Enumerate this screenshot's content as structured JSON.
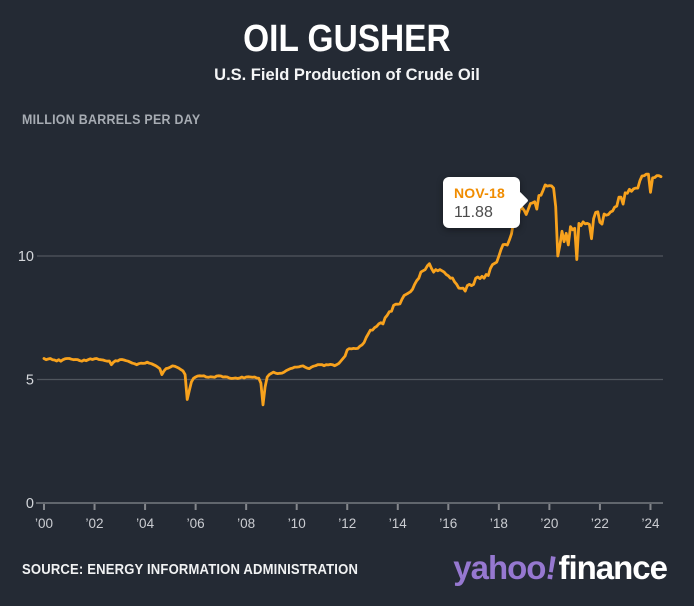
{
  "header": {
    "title": "OIL GUSHER",
    "subtitle": "U.S. Field Production of Crude Oil"
  },
  "units_label": "MILLION BARRELS PER DAY",
  "tooltip": {
    "label": "NOV-18",
    "value": "11.88"
  },
  "footer": {
    "source": "SOURCE: ENERGY INFORMATION ADMINISTRATION",
    "logo_yahoo": "yahoo",
    "logo_bang": "!",
    "logo_finance": "finance"
  },
  "colors": {
    "background": "#242a34",
    "line": "#f8a21d",
    "grid": "#50565e",
    "axis": "#61666d",
    "tick": "#84878c",
    "tick_label": "#caccd1",
    "y_label": "#d4d7db",
    "tooltip_label": "#f08c00",
    "tooltip_value": "#4c4c4c",
    "yahoo_purple": "#9678d0"
  },
  "chart_data": {
    "type": "line",
    "title": "OIL GUSHER",
    "subtitle": "U.S. Field Production of Crude Oil",
    "ylabel": "MILLION BARRELS PER DAY",
    "series_name": "U.S. field production of crude oil",
    "frequency": "monthly",
    "x_start": "2000-01",
    "x_end": "2024-06",
    "x_ticks": [
      2000,
      2002,
      2004,
      2006,
      2008,
      2010,
      2012,
      2014,
      2016,
      2018,
      2020,
      2022,
      2024
    ],
    "x_tick_labels": [
      "’00",
      "’02",
      "’04",
      "’06",
      "’08",
      "’10",
      "’12",
      "’14",
      "’16",
      "’18",
      "’20",
      "’22",
      "’24"
    ],
    "y_ticks": [
      0,
      5,
      10
    ],
    "ylim": [
      0,
      13.8
    ],
    "grid": "horizontal",
    "legend": false,
    "annotation": {
      "x": "2018-11",
      "y": 11.88,
      "label": "NOV-18"
    },
    "values": [
      5.85,
      5.8,
      5.83,
      5.85,
      5.8,
      5.79,
      5.75,
      5.8,
      5.74,
      5.8,
      5.84,
      5.85,
      5.85,
      5.82,
      5.8,
      5.81,
      5.8,
      5.76,
      5.74,
      5.79,
      5.76,
      5.8,
      5.84,
      5.81,
      5.84,
      5.85,
      5.81,
      5.8,
      5.79,
      5.76,
      5.74,
      5.75,
      5.6,
      5.7,
      5.76,
      5.75,
      5.8,
      5.81,
      5.79,
      5.76,
      5.74,
      5.7,
      5.66,
      5.64,
      5.6,
      5.64,
      5.66,
      5.65,
      5.66,
      5.7,
      5.66,
      5.64,
      5.6,
      5.56,
      5.5,
      5.44,
      5.2,
      5.35,
      5.44,
      5.46,
      5.5,
      5.55,
      5.54,
      5.5,
      5.46,
      5.4,
      5.35,
      5.2,
      4.19,
      4.55,
      4.9,
      5.05,
      5.1,
      5.14,
      5.15,
      5.14,
      5.15,
      5.1,
      5.09,
      5.11,
      5.1,
      5.09,
      5.14,
      5.15,
      5.14,
      5.1,
      5.11,
      5.1,
      5.06,
      5.04,
      5.05,
      5.06,
      5.04,
      5.06,
      5.1,
      5.06,
      5.1,
      5.11,
      5.1,
      5.09,
      5.1,
      5.06,
      5.05,
      4.85,
      3.97,
      4.7,
      5.1,
      5.2,
      5.25,
      5.3,
      5.26,
      5.24,
      5.25,
      5.26,
      5.3,
      5.36,
      5.4,
      5.44,
      5.46,
      5.5,
      5.5,
      5.51,
      5.54,
      5.55,
      5.5,
      5.46,
      5.44,
      5.5,
      5.54,
      5.56,
      5.6,
      5.6,
      5.6,
      5.56,
      5.6,
      5.59,
      5.61,
      5.6,
      5.56,
      5.6,
      5.65,
      5.75,
      5.85,
      5.95,
      6.2,
      6.25,
      6.24,
      6.26,
      6.25,
      6.26,
      6.35,
      6.4,
      6.5,
      6.7,
      6.85,
      7.0,
      7.0,
      7.1,
      7.15,
      7.25,
      7.3,
      7.25,
      7.5,
      7.6,
      7.75,
      7.76,
      8.0,
      8.05,
      8.05,
      8.06,
      8.25,
      8.4,
      8.45,
      8.5,
      8.55,
      8.65,
      8.85,
      9.0,
      9.1,
      9.35,
      9.4,
      9.45,
      9.6,
      9.69,
      9.5,
      9.35,
      9.45,
      9.4,
      9.45,
      9.4,
      9.35,
      9.25,
      9.2,
      9.1,
      9.11,
      8.95,
      8.85,
      8.7,
      8.69,
      8.7,
      8.58,
      8.8,
      8.85,
      8.8,
      8.85,
      9.1,
      9.15,
      9.08,
      9.18,
      9.1,
      9.25,
      9.21,
      9.5,
      9.65,
      9.7,
      9.75,
      10.0,
      10.26,
      10.46,
      10.47,
      10.44,
      10.65,
      10.9,
      11.4,
      11.48,
      11.55,
      11.88,
      11.96,
      11.85,
      11.68,
      11.9,
      12.12,
      12.15,
      12.2,
      11.9,
      12.45,
      12.46,
      12.66,
      12.88,
      12.83,
      12.85,
      12.84,
      12.75,
      12.0,
      10.0,
      10.44,
      11.0,
      10.58,
      10.92,
      10.45,
      11.19,
      11.06,
      11.12,
      9.86,
      11.32,
      11.23,
      11.38,
      11.3,
      11.32,
      11.28,
      10.7,
      11.51,
      11.77,
      11.79,
      11.37,
      11.29,
      11.7,
      11.65,
      11.68,
      11.78,
      11.82,
      11.98,
      12.02,
      12.38,
      12.38,
      12.1,
      12.56,
      12.54,
      12.7,
      12.62,
      12.72,
      12.75,
      12.75,
      13.05,
      13.24,
      13.25,
      13.31,
      13.31,
      12.58,
      13.16,
      13.18,
      13.25,
      13.25,
      13.21
    ]
  }
}
